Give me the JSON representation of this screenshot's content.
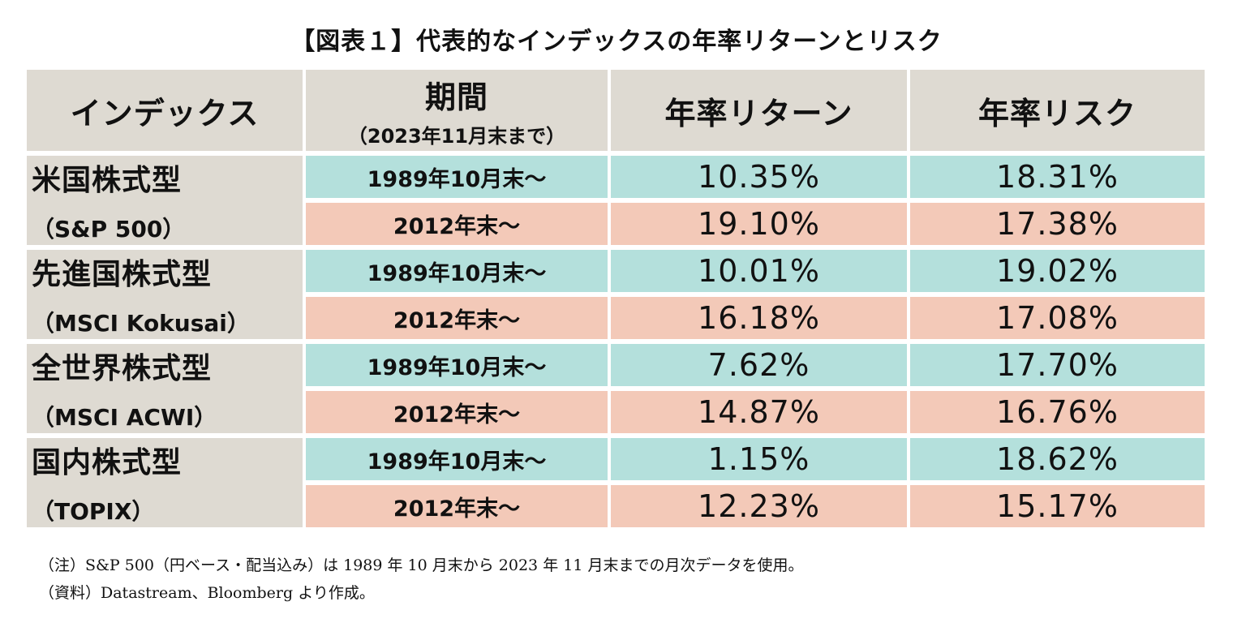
{
  "title": "【図表１】代表的なインデックスの年率リターンとリスク",
  "header": {
    "index": "インデックス",
    "period": "期間",
    "period_sub": "（2023年11月末まで）",
    "annual_return": "年率リターン",
    "annual_risk": "年率リスク"
  },
  "rows": [
    {
      "name": "米国株式型",
      "sub": "（S&P 500）",
      "periods": [
        {
          "period": "1989年10月末～",
          "return": "10.35%",
          "risk": "18.31%"
        },
        {
          "period": "2012年末～",
          "return": "19.10%",
          "risk": "17.38%"
        }
      ]
    },
    {
      "name": "先進国株式型",
      "sub": "（MSCI Kokusai）",
      "periods": [
        {
          "period": "1989年10月末～",
          "return": "10.01%",
          "risk": "19.02%"
        },
        {
          "period": "2012年末～",
          "return": "16.18%",
          "risk": "17.08%"
        }
      ]
    },
    {
      "name": "全世界株式型",
      "sub": "（MSCI ACWI）",
      "periods": [
        {
          "period": "1989年10月末～",
          "return": "7.62%",
          "risk": "17.70%"
        },
        {
          "period": "2012年末～",
          "return": "14.87%",
          "risk": "16.76%"
        }
      ]
    },
    {
      "name": "国内株式型",
      "sub": "（TOPIX）",
      "periods": [
        {
          "period": "1989年10月末～",
          "return": "1.15%",
          "risk": "18.62%"
        },
        {
          "period": "2012年末～",
          "return": "12.23%",
          "risk": "15.17%"
        }
      ]
    }
  ],
  "notes": [
    "（注）S&P 500（円ベース・配当込み）は 1989 年 10 月末から 2023 年 11 月末までの月次データを使用。",
    "（資料）Datastream、Bloomberg より作成。"
  ],
  "colors": {
    "header_bg": "#dedad2",
    "first_period_bg": "#b4e0dc",
    "second_period_bg": "#f3c9b8"
  }
}
